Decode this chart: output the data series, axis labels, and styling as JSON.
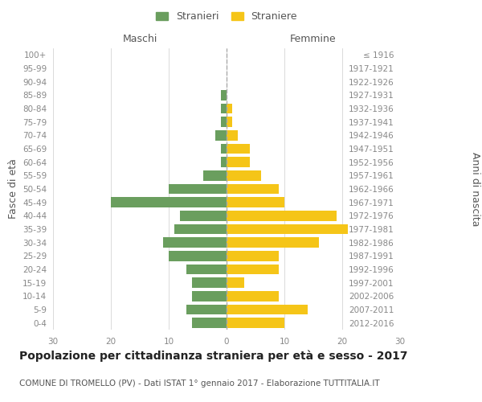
{
  "age_groups": [
    "100+",
    "95-99",
    "90-94",
    "85-89",
    "80-84",
    "75-79",
    "70-74",
    "65-69",
    "60-64",
    "55-59",
    "50-54",
    "45-49",
    "40-44",
    "35-39",
    "30-34",
    "25-29",
    "20-24",
    "15-19",
    "10-14",
    "5-9",
    "0-4"
  ],
  "birth_years": [
    "≤ 1916",
    "1917-1921",
    "1922-1926",
    "1927-1931",
    "1932-1936",
    "1937-1941",
    "1942-1946",
    "1947-1951",
    "1952-1956",
    "1957-1961",
    "1962-1966",
    "1967-1971",
    "1972-1976",
    "1977-1981",
    "1982-1986",
    "1987-1991",
    "1992-1996",
    "1997-2001",
    "2002-2006",
    "2007-2011",
    "2012-2016"
  ],
  "maschi": [
    0,
    0,
    0,
    1,
    1,
    1,
    2,
    1,
    1,
    4,
    10,
    20,
    8,
    9,
    11,
    10,
    7,
    6,
    6,
    7,
    6
  ],
  "femmine": [
    0,
    0,
    0,
    0,
    1,
    1,
    2,
    4,
    4,
    6,
    9,
    10,
    19,
    21,
    16,
    9,
    9,
    3,
    9,
    14,
    10
  ],
  "maschi_color": "#6a9e5e",
  "femmine_color": "#f5c518",
  "title": "Popolazione per cittadinanza straniera per età e sesso - 2017",
  "subtitle": "COMUNE DI TROMELLO (PV) - Dati ISTAT 1° gennaio 2017 - Elaborazione TUTTITALIA.IT",
  "ylabel_left": "Fasce di età",
  "ylabel_right": "Anni di nascita",
  "xlabel_maschi": "Maschi",
  "xlabel_femmine": "Femmine",
  "legend_maschi": "Stranieri",
  "legend_femmine": "Straniere",
  "xlim": 30,
  "background_color": "#ffffff",
  "grid_color": "#cccccc",
  "bar_height": 0.75,
  "title_fontsize": 10,
  "subtitle_fontsize": 7.5,
  "tick_fontsize": 7.5,
  "label_fontsize": 9,
  "axis_label_color": "#555555",
  "tick_label_color": "#888888",
  "dashed_line_color": "#aaaaaa"
}
